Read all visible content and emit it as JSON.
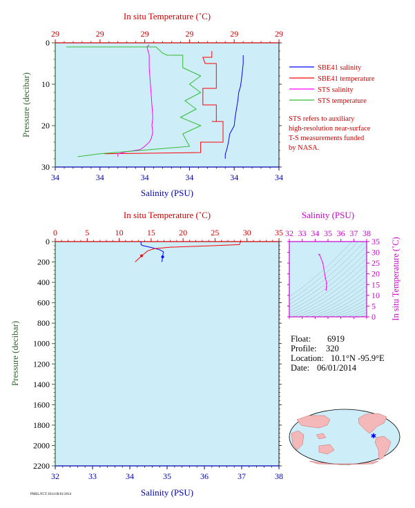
{
  "colors": {
    "plot_bg": "#cdeef8",
    "salinity_axis": "#0000aa",
    "temperature_axis": "#cc0000",
    "pressure_axis": "#336633",
    "ts_axis": "#cc00cc",
    "sbe41_salinity": "#0000ff",
    "sbe41_temperature": "#ff0000",
    "sts_salinity": "#ff00ff",
    "sts_temperature": "#33bb33",
    "land": "#f4b8b8",
    "ocean": "#cdeef8",
    "float_marker": "#0000ff"
  },
  "legend": {
    "items": [
      {
        "label": "SBE41 salinity",
        "color": "#0000ff"
      },
      {
        "label": "SBE41 temperature",
        "color": "#ff0000"
      },
      {
        "label": "STS salinity",
        "color": "#ff00ff"
      },
      {
        "label": "STS temperature",
        "color": "#33bb33"
      }
    ],
    "note_lines": [
      "STS refers to auxiliary",
      "high-resolution near-surface",
      "T-S measurements funded",
      "by NASA."
    ]
  },
  "info": {
    "float_label": "Float:",
    "float_value": "6919",
    "profile_label": "Profile:",
    "profile_value": "320",
    "location_label": "Location:",
    "location_value": "10.1°N  -95.9°E",
    "date_label": "Date:",
    "date_value": "06/01/2014"
  },
  "footer_text": "PMEL/FCT 2014 06/01/2014",
  "chart_data": [
    {
      "type": "line",
      "id": "near-surface",
      "top_axis_label": "In situ Temperature (˚C)",
      "bottom_axis_label": "Salinity (PSU)",
      "left_axis_label": "Pressure (decibar)",
      "top_ticks": [
        "29",
        "29",
        "29",
        "29",
        "29",
        "29"
      ],
      "bottom_ticks": [
        "34",
        "34",
        "34",
        "34",
        "34",
        "34"
      ],
      "left_ticks": [
        "0",
        "10",
        "20",
        "30"
      ],
      "ylim": [
        0,
        30
      ],
      "temperature_range": [
        28.4,
        29.4
      ],
      "salinity_range": [
        33.9,
        34.4
      ],
      "series": [
        {
          "name": "SBE41 salinity",
          "axis": "salinity",
          "x": [
            34.32,
            34.32,
            34.318,
            34.316,
            34.314,
            34.31,
            34.308,
            34.305,
            34.302,
            34.3,
            34.295,
            34.29,
            34.287,
            34.284,
            34.28,
            34.28
          ],
          "y": [
            3.0,
            5.0,
            7.0,
            9.0,
            10.5,
            12.0,
            14.0,
            16.0,
            18.0,
            20.0,
            21.0,
            22.0,
            24.0,
            25.5,
            27.0,
            28.0
          ]
        },
        {
          "name": "SBE41 temperature",
          "axis": "temperature",
          "x": [
            29.1,
            29.1,
            29.06,
            29.07,
            29.12,
            29.12,
            29.06,
            29.06,
            29.12,
            29.12,
            29.1,
            29.15,
            29.15,
            29.12,
            29.05,
            29.05,
            28.62
          ],
          "y": [
            2.0,
            3.5,
            3.5,
            5.0,
            5.0,
            11.0,
            11.0,
            15.0,
            15.0,
            19.0,
            19.0,
            19.0,
            24.0,
            24.0,
            24.0,
            26.5,
            26.8
          ]
        },
        {
          "name": "STS salinity",
          "axis": "salinity",
          "x": [
            34.11,
            34.105,
            34.11,
            34.11,
            34.112,
            34.114,
            34.116,
            34.118,
            34.116,
            34.118,
            34.115,
            34.11,
            34.1,
            34.09,
            34.06,
            34.04,
            34.04
          ],
          "y": [
            0.5,
            1.0,
            3.0,
            6.0,
            9.0,
            12.0,
            15.0,
            18.0,
            20.0,
            21.5,
            23.0,
            24.0,
            25.0,
            25.8,
            26.3,
            26.8,
            27.5
          ]
        },
        {
          "name": "STS temperature",
          "axis": "temperature",
          "x": [
            28.45,
            28.85,
            28.88,
            28.9,
            28.97,
            28.97,
            29.05,
            29.0,
            29.05,
            28.98,
            29.03,
            28.96,
            29.05,
            28.97,
            29.0,
            28.6,
            28.5
          ],
          "y": [
            1.0,
            1.0,
            2.5,
            3.0,
            3.0,
            6.0,
            8.0,
            10.0,
            12.0,
            14.0,
            16.0,
            18.0,
            20.0,
            22.0,
            25.0,
            26.8,
            27.5
          ]
        }
      ]
    },
    {
      "type": "line",
      "id": "full-profile",
      "top_axis_label": "In situ Temperature (˚C)",
      "bottom_axis_label": "Salinity (PSU)",
      "left_axis_label": "Pressure (decibar)",
      "top_ticks": [
        "0",
        "5",
        "10",
        "15",
        "20",
        "25",
        "30",
        "35"
      ],
      "bottom_ticks": [
        "32",
        "33",
        "34",
        "35",
        "36",
        "37",
        "38"
      ],
      "left_ticks": [
        "0",
        "200",
        "400",
        "600",
        "800",
        "1000",
        "1200",
        "1400",
        "1600",
        "1800",
        "2000",
        "2200"
      ],
      "ylim": [
        0,
        2200
      ],
      "temperature_range": [
        0,
        35
      ],
      "salinity_range": [
        32,
        38
      ],
      "series": [
        {
          "name": "SBE41 salinity",
          "axis": "salinity",
          "x": [
            34.3,
            34.3,
            34.35,
            34.6,
            34.8,
            34.9,
            34.88,
            34.86
          ],
          "y": [
            0,
            30,
            40,
            60,
            80,
            100,
            150,
            200
          ]
        },
        {
          "name": "SBE41 temperature",
          "axis": "temperature",
          "x": [
            29.0,
            28.8,
            25.0,
            18.0,
            15.5,
            14.5,
            13.5,
            12.5
          ],
          "y": [
            0,
            30,
            40,
            55,
            70,
            90,
            140,
            200
          ]
        }
      ]
    },
    {
      "type": "scatter",
      "id": "ts-diagram",
      "top_axis_label": "Salinity (PSU)",
      "right_axis_label": "In situ Temperature (˚C)",
      "top_ticks": [
        "32",
        "33",
        "34",
        "35",
        "36",
        "37",
        "38"
      ],
      "right_ticks": [
        "0",
        "5",
        "10",
        "15",
        "20",
        "25",
        "30",
        "35"
      ],
      "xlim": [
        32,
        38
      ],
      "ylim": [
        0,
        35
      ],
      "series": [
        {
          "name": "SBE41",
          "x": [
            34.3,
            34.35,
            34.6,
            34.8,
            34.9,
            34.88,
            34.86
          ],
          "y": [
            29.0,
            28.8,
            25.0,
            18.0,
            15.5,
            14.0,
            12.5
          ]
        }
      ]
    }
  ]
}
